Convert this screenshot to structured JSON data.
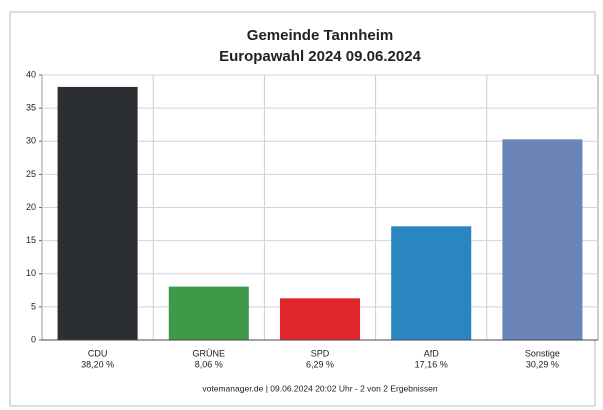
{
  "chart_data": {
    "type": "bar",
    "title": "Gemeinde Tannheim",
    "subtitle": "Europawahl 2024 09.06.2024",
    "categories": [
      "CDU",
      "GRÜNE",
      "SPD",
      "AfD",
      "Sonstige"
    ],
    "values": [
      38.2,
      8.06,
      6.29,
      17.16,
      30.29
    ],
    "value_labels": [
      "38,20 %",
      "8,06 %",
      "6,29 %",
      "17,16 %",
      "30,29 %"
    ],
    "colors": [
      "#2b2f33",
      "#3f9a48",
      "#e0262c",
      "#2a86c0",
      "#6c85b9"
    ],
    "ylim": [
      0,
      40
    ],
    "yticks": [
      0,
      5,
      10,
      15,
      20,
      25,
      30,
      35,
      40
    ],
    "grid": true,
    "footer": "votemanager.de | 09.06.2024 20:02 Uhr - 2 von 2 Ergebnissen"
  }
}
